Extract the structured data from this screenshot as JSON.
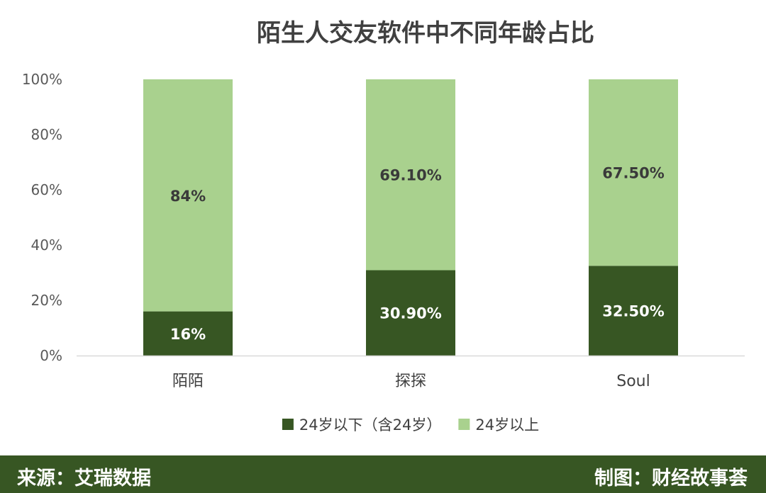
{
  "chart_data": {
    "type": "bar",
    "stacked": true,
    "title": "陌生人交友软件中不同年龄占比",
    "categories": [
      "陌陌",
      "探探",
      "Soul"
    ],
    "series": [
      {
        "name": "24岁以下（含24岁）",
        "color": "#375623",
        "values": [
          16,
          30.9,
          32.5
        ],
        "labels": [
          "16%",
          "30.90%",
          "32.50%"
        ]
      },
      {
        "name": "24岁以上",
        "color": "#a9d18e",
        "values": [
          84,
          69.1,
          67.5
        ],
        "labels": [
          "84%",
          "69.10%",
          "67.50%"
        ]
      }
    ],
    "ylim": [
      0,
      100
    ],
    "yticks": [
      {
        "value": 0,
        "label": "0%"
      },
      {
        "value": 20,
        "label": "20%"
      },
      {
        "value": 40,
        "label": "40%"
      },
      {
        "value": 60,
        "label": "60%"
      },
      {
        "value": 80,
        "label": "80%"
      },
      {
        "value": 100,
        "label": "100%"
      }
    ],
    "legend_position": "bottom",
    "grid": false
  },
  "footer": {
    "source": "来源：艾瑞数据",
    "credit": "制图：财经故事荟",
    "color": "#375623"
  }
}
